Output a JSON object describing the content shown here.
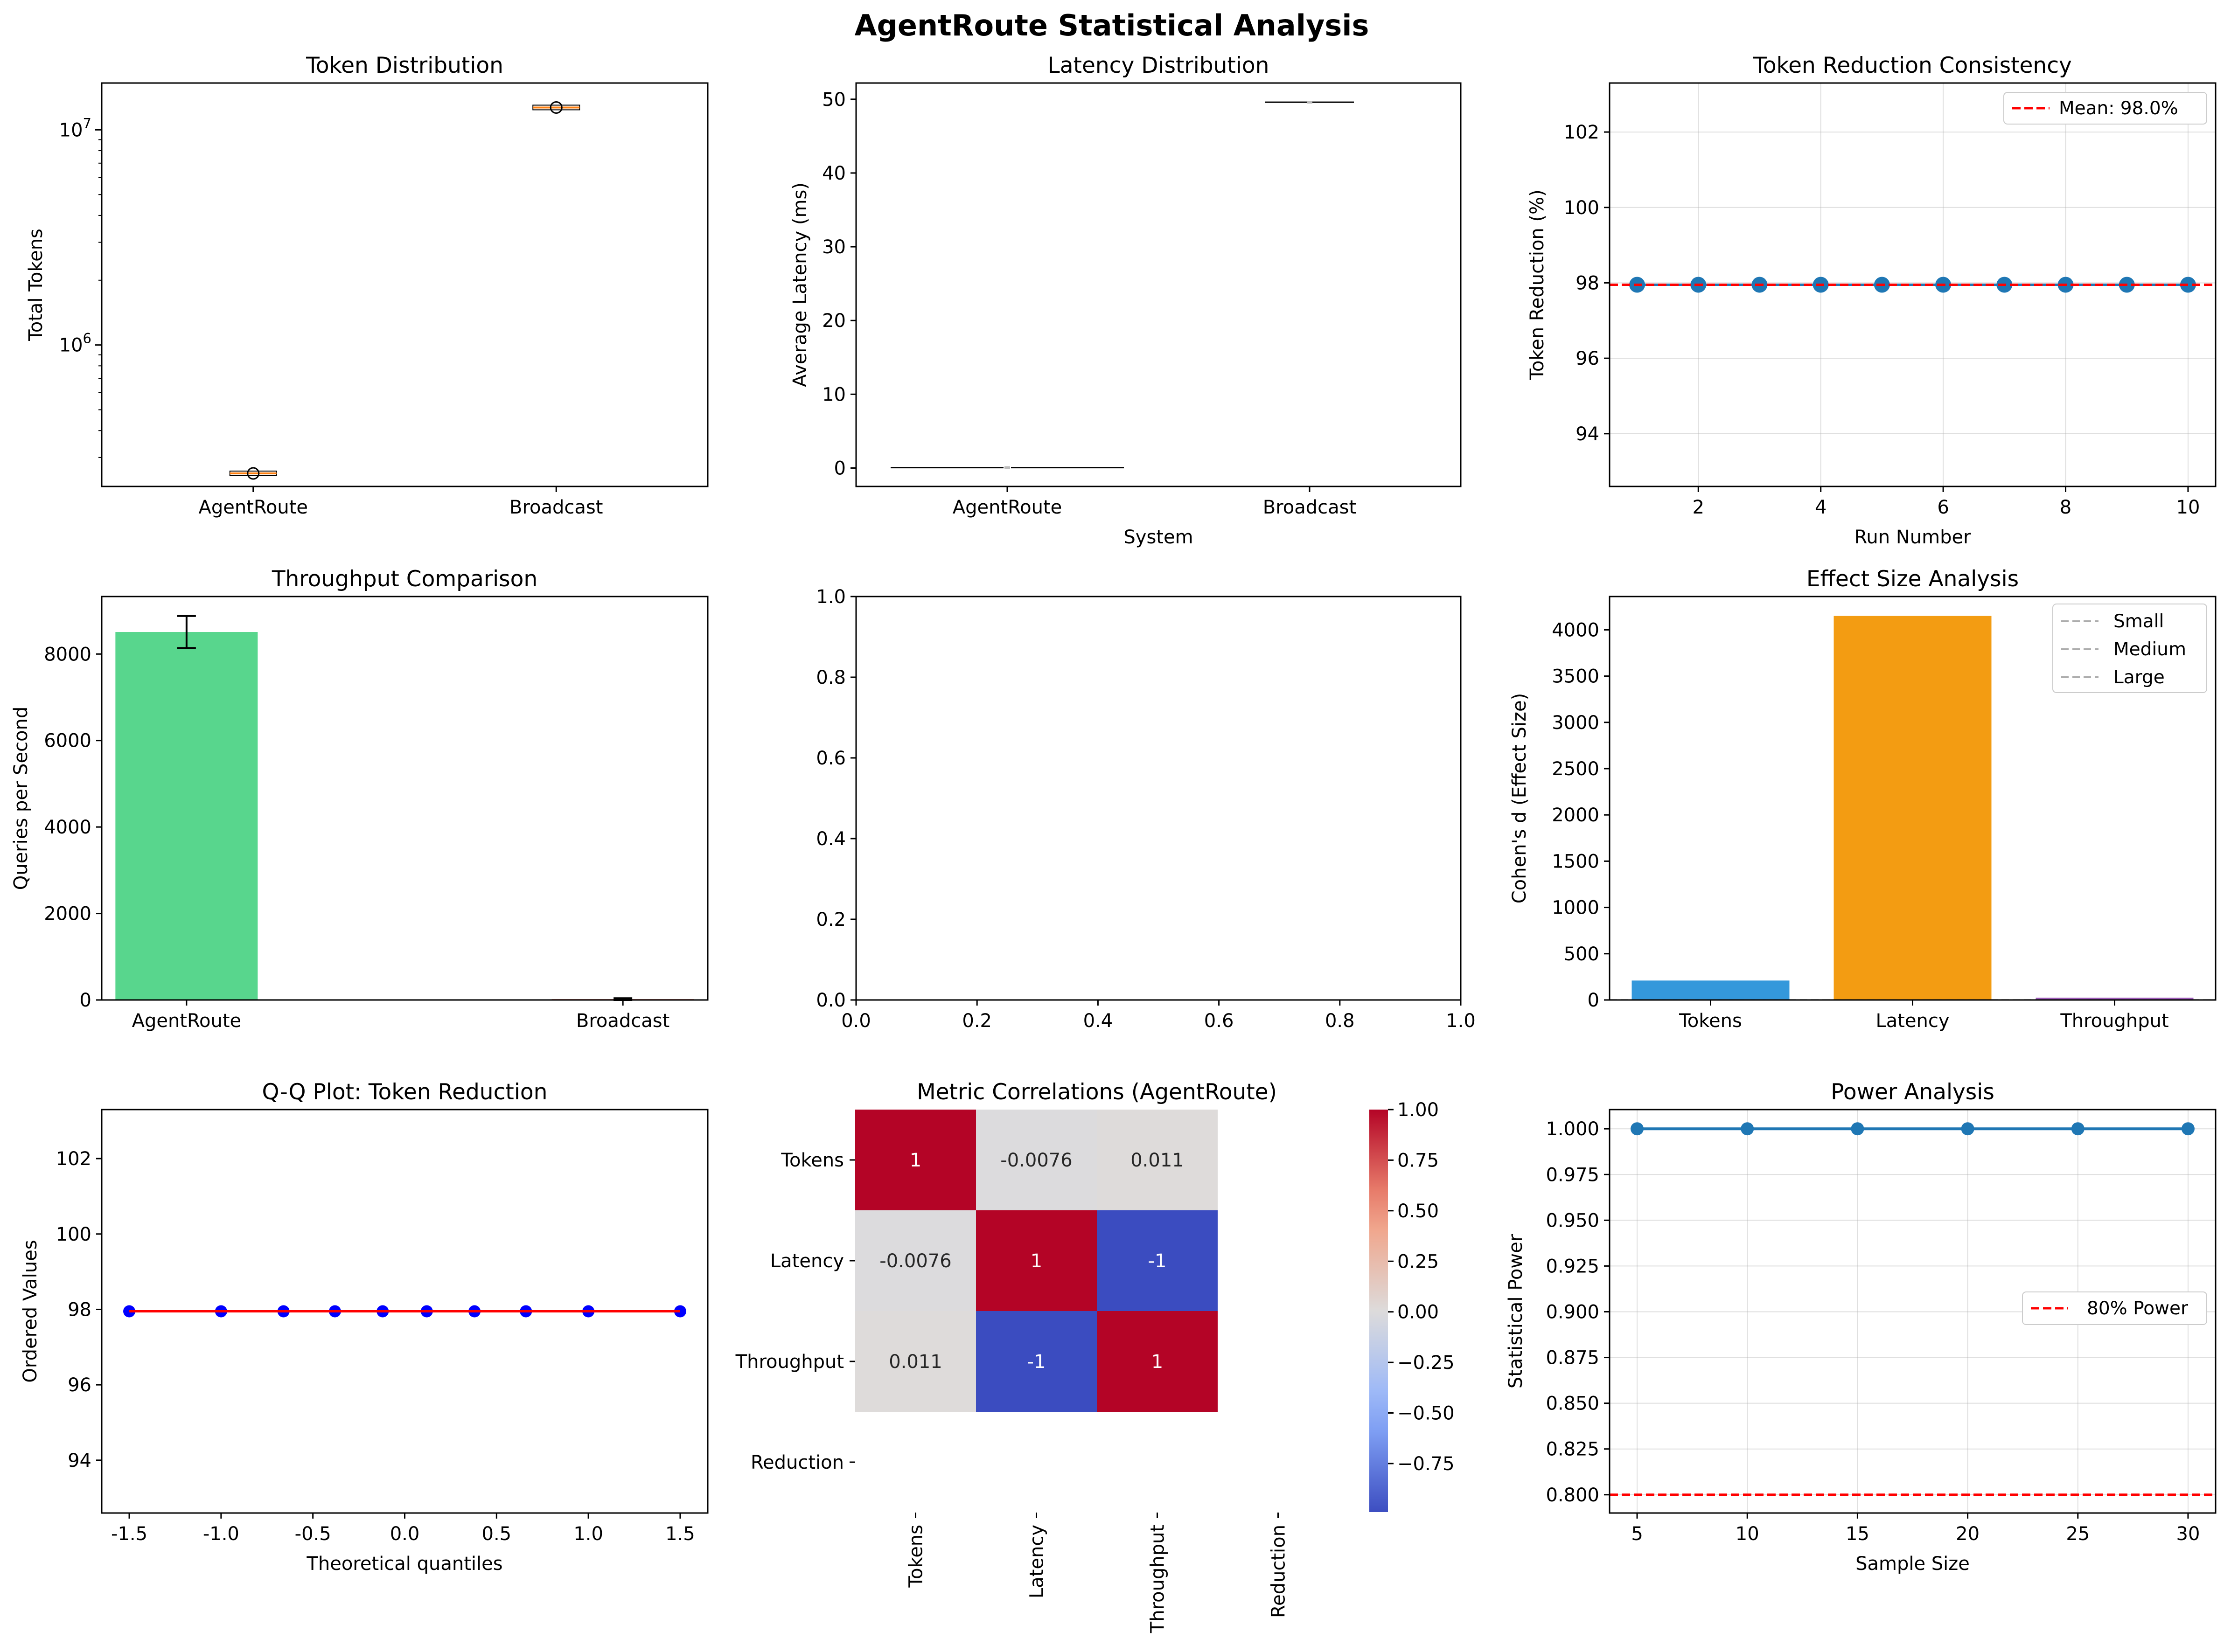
{
  "suptitle": "AgentRoute Statistical Analysis",
  "chart_data": [
    {
      "id": "token_distribution",
      "type": "box",
      "title": "Token Distribution",
      "xlabel": "",
      "ylabel": "Total Tokens",
      "yscale": "log",
      "ylim": [
        220000,
        16500000
      ],
      "y_ticks": [
        {
          "value": 1000000,
          "label": "10",
          "exp": "6"
        },
        {
          "value": 10000000,
          "label": "10",
          "exp": "7"
        }
      ],
      "categories": [
        "AgentRoute",
        "Broadcast"
      ],
      "values": [
        253000,
        12700000
      ],
      "box_color": "#ff7f0e"
    },
    {
      "id": "latency_distribution",
      "type": "violin",
      "title": "Latency Distribution",
      "xlabel": "System",
      "ylabel": "Average Latency (ms)",
      "ylim": [
        -2.5,
        52.2
      ],
      "y_ticks": [
        0,
        10,
        20,
        30,
        40,
        50
      ],
      "categories": [
        "AgentRoute",
        "Broadcast"
      ],
      "values": [
        0.05,
        49.6
      ]
    },
    {
      "id": "token_reduction_consistency",
      "type": "line",
      "title": "Token Reduction Consistency",
      "xlabel": "Run Number",
      "ylabel": "Token Reduction (%)",
      "xlim": [
        0.55,
        10.45
      ],
      "ylim": [
        92.6,
        103.3
      ],
      "x_ticks": [
        2,
        4,
        6,
        8,
        10
      ],
      "y_ticks": [
        94,
        96,
        98,
        100,
        102
      ],
      "x": [
        1,
        2,
        3,
        4,
        5,
        6,
        7,
        8,
        9,
        10
      ],
      "y": [
        97.95,
        97.95,
        97.95,
        97.95,
        97.95,
        97.95,
        97.95,
        97.95,
        97.95,
        97.95
      ],
      "mean_line": {
        "value": 97.95,
        "label": "Mean: 98.0%",
        "color": "#ff0000"
      },
      "legend": "top-right",
      "grid": true,
      "color": "#1f77b4"
    },
    {
      "id": "throughput_comparison",
      "type": "bar",
      "title": "Throughput Comparison",
      "xlabel": "",
      "ylabel": "Queries per Second",
      "ylim": [
        0,
        9330
      ],
      "y_ticks": [
        0,
        2000,
        4000,
        6000,
        8000
      ],
      "categories": [
        "AgentRoute",
        "Broadcast"
      ],
      "values": [
        8510,
        20
      ],
      "errors": [
        370,
        20
      ],
      "colors": [
        "#2ecc71",
        "#e74c3c"
      ]
    },
    {
      "id": "empty_axes",
      "type": "empty",
      "xlim": [
        0,
        1
      ],
      "ylim": [
        0,
        1
      ],
      "x_ticks": [
        "0.0",
        "0.2",
        "0.4",
        "0.6",
        "0.8",
        "1.0"
      ],
      "y_ticks": [
        "0.0",
        "0.2",
        "0.4",
        "0.6",
        "0.8",
        "1.0"
      ]
    },
    {
      "id": "effect_size_analysis",
      "type": "bar",
      "title": "Effect Size Analysis",
      "xlabel": "",
      "ylabel": "Cohen's d (Effect Size)",
      "ylim": [
        0,
        4360
      ],
      "y_ticks": [
        0,
        500,
        1000,
        1500,
        2000,
        2500,
        3000,
        3500,
        4000
      ],
      "categories": [
        "Tokens",
        "Latency",
        "Throughput"
      ],
      "values": [
        210,
        4150,
        25
      ],
      "colors": [
        "#3498db",
        "#f39c12",
        "#9b59b6"
      ],
      "reference_lines": [
        {
          "label": "Small",
          "value": 0.2
        },
        {
          "label": "Medium",
          "value": 0.5
        },
        {
          "label": "Large",
          "value": 0.8
        }
      ],
      "legend": "top-right"
    },
    {
      "id": "qq_plot",
      "type": "scatter",
      "title": "Q-Q Plot: Token Reduction",
      "xlabel": "Theoretical quantiles",
      "ylabel": "Ordered Values",
      "xlim": [
        -1.65,
        1.65
      ],
      "ylim": [
        92.6,
        103.3
      ],
      "x_ticks": [
        "-1.5",
        "-1.0",
        "-0.5",
        "0.0",
        "0.5",
        "1.0",
        "1.5"
      ],
      "y_ticks": [
        94,
        96,
        98,
        100,
        102
      ],
      "x": [
        -1.5,
        -1.0,
        -0.66,
        -0.38,
        -0.12,
        0.12,
        0.38,
        0.66,
        1.0,
        1.5
      ],
      "y": [
        97.95,
        97.95,
        97.95,
        97.95,
        97.95,
        97.95,
        97.95,
        97.95,
        97.95,
        97.95
      ],
      "fit_line_y": 97.95
    },
    {
      "id": "metric_correlations",
      "type": "heatmap",
      "title": "Metric Correlations (AgentRoute)",
      "row_labels": [
        "Tokens",
        "Latency",
        "Throughput",
        "Reduction"
      ],
      "col_labels": [
        "Tokens",
        "Latency",
        "Throughput",
        "Reduction"
      ],
      "values": [
        [
          1,
          -0.0076,
          0.011,
          null
        ],
        [
          -0.0076,
          1,
          -1,
          null
        ],
        [
          0.011,
          -1,
          1,
          null
        ],
        [
          null,
          null,
          null,
          null
        ]
      ],
      "cell_text": [
        [
          "1",
          "-0.0076",
          "0.011",
          ""
        ],
        [
          "-0.0076",
          "1",
          "-1",
          ""
        ],
        [
          "0.011",
          "-1",
          "1",
          ""
        ],
        [
          "",
          "",
          "",
          ""
        ]
      ],
      "colorbar_ticks": [
        "1.00",
        "0.75",
        "0.50",
        "0.25",
        "0.00",
        "−0.25",
        "−0.50",
        "−0.75"
      ],
      "colorbar_values": [
        1.0,
        0.75,
        0.5,
        0.25,
        0.0,
        -0.25,
        -0.5,
        -0.75
      ],
      "colormap": "coolwarm"
    },
    {
      "id": "power_analysis",
      "type": "line",
      "title": "Power Analysis",
      "xlabel": "Sample Size",
      "ylabel": "Statistical Power",
      "xlim": [
        3.75,
        31.25
      ],
      "ylim": [
        0.79,
        1.0105
      ],
      "x_ticks": [
        5,
        10,
        15,
        20,
        25,
        30
      ],
      "y_ticks": [
        "0.800",
        "0.825",
        "0.850",
        "0.875",
        "0.900",
        "0.925",
        "0.950",
        "0.975",
        "1.000"
      ],
      "x": [
        5,
        10,
        15,
        20,
        25,
        30
      ],
      "y": [
        1.0,
        1.0,
        1.0,
        1.0,
        1.0,
        1.0
      ],
      "threshold_line": {
        "value": 0.8,
        "label": "80% Power",
        "color": "#ff0000"
      },
      "legend": "center-right",
      "grid": true,
      "color": "#1f77b4"
    }
  ]
}
